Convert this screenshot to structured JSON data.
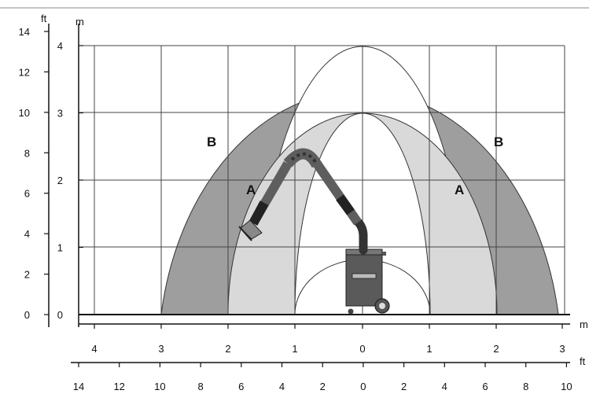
{
  "diagram": {
    "units": {
      "left_outer": "ft",
      "left_inner": "m",
      "bottom_top": "m",
      "bottom_bottom": "ft"
    },
    "zones": {
      "outer": "B",
      "inner": "A"
    },
    "ft_y_ticks": [
      "14",
      "12",
      "10",
      "8",
      "6",
      "4",
      "2",
      "0"
    ],
    "m_y_ticks": [
      "4",
      "3",
      "2",
      "1",
      "0"
    ],
    "m_x_ticks": [
      "4",
      "3",
      "2",
      "1",
      "0",
      "1",
      "2",
      "3"
    ],
    "ft_x_ticks": [
      "14",
      "12",
      "10",
      "8",
      "6",
      "4",
      "2",
      "0",
      "2",
      "4",
      "6",
      "8",
      "10"
    ],
    "colors": {
      "zone_b": "#9e9e9e",
      "zone_a": "#d9d9d9",
      "grid": "#444444",
      "machine": "#5a5a5a"
    }
  }
}
